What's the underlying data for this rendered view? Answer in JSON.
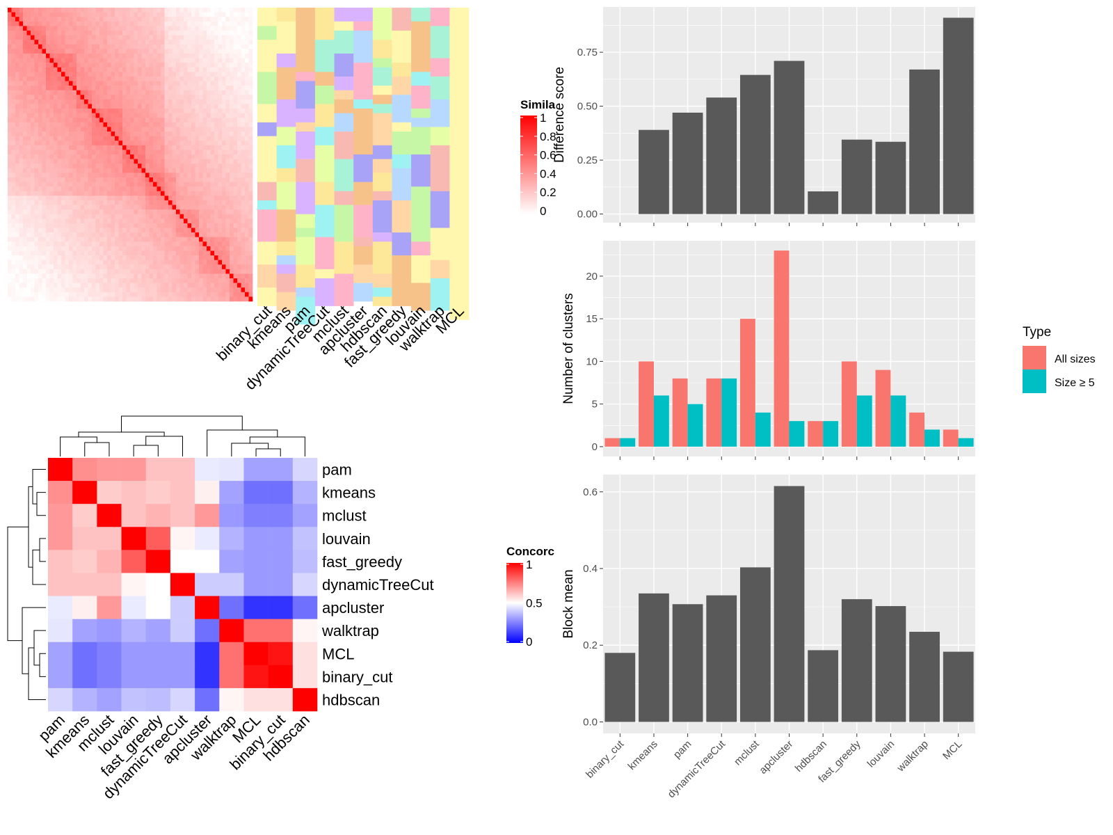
{
  "similarity_legend": {
    "title": "Simila",
    "ticks": [
      "1",
      "0.8",
      "0.6",
      "0.4",
      "0.2",
      "0"
    ],
    "colors": {
      "low": "#ffffff",
      "high": "#ff0000"
    }
  },
  "concordance_legend": {
    "title": "Concorc",
    "ticks": [
      "1",
      "0.5",
      "0"
    ],
    "colors": {
      "low": "#0000ff",
      "mid": "#ffffff",
      "high": "#ff0000"
    }
  },
  "chart_data": [
    {
      "id": "cell_similarity_heatmap",
      "type": "heatmap",
      "description_values": "cell-by-cell similarity matrix with assigned cluster annotations per method",
      "annotation_columns": [
        "binary_cut",
        "kmeans",
        "pam",
        "dynamicTreeCut",
        "mclust",
        "apcluster",
        "hdbscan",
        "fast_greedy",
        "louvain",
        "walktrap",
        "MCL"
      ],
      "n_rows": 64,
      "value_range": [
        0,
        1
      ]
    },
    {
      "id": "method_concordance_heatmap",
      "type": "heatmap",
      "rows": [
        "pam",
        "kmeans",
        "mclust",
        "louvain",
        "fast_greedy",
        "dynamicTreeCut",
        "apcluster",
        "walktrap",
        "MCL",
        "binary_cut",
        "hdbscan"
      ],
      "columns": [
        "pam",
        "kmeans",
        "mclust",
        "louvain",
        "fast_greedy",
        "dynamicTreeCut",
        "apcluster",
        "walktrap",
        "MCL",
        "binary_cut",
        "hdbscan"
      ],
      "values": [
        [
          1.0,
          0.72,
          0.7,
          0.7,
          0.62,
          0.62,
          0.46,
          0.45,
          0.32,
          0.32,
          0.42
        ],
        [
          0.72,
          1.0,
          0.6,
          0.62,
          0.6,
          0.62,
          0.53,
          0.32,
          0.22,
          0.22,
          0.35
        ],
        [
          0.7,
          0.6,
          1.0,
          0.62,
          0.65,
          0.62,
          0.7,
          0.3,
          0.25,
          0.25,
          0.32
        ],
        [
          0.7,
          0.62,
          0.62,
          1.0,
          0.82,
          0.52,
          0.46,
          0.35,
          0.3,
          0.3,
          0.38
        ],
        [
          0.62,
          0.6,
          0.65,
          0.82,
          1.0,
          0.5,
          0.5,
          0.32,
          0.3,
          0.3,
          0.37
        ],
        [
          0.62,
          0.62,
          0.62,
          0.52,
          0.5,
          1.0,
          0.4,
          0.4,
          0.3,
          0.3,
          0.42
        ],
        [
          0.46,
          0.53,
          0.7,
          0.46,
          0.5,
          0.4,
          1.0,
          0.22,
          0.1,
          0.1,
          0.22
        ],
        [
          0.45,
          0.32,
          0.3,
          0.35,
          0.32,
          0.4,
          0.22,
          1.0,
          0.78,
          0.78,
          0.52
        ],
        [
          0.32,
          0.22,
          0.25,
          0.3,
          0.3,
          0.3,
          0.1,
          0.78,
          1.0,
          0.96,
          0.56
        ],
        [
          0.32,
          0.22,
          0.25,
          0.3,
          0.3,
          0.3,
          0.1,
          0.78,
          0.96,
          1.0,
          0.56
        ],
        [
          0.42,
          0.35,
          0.32,
          0.38,
          0.37,
          0.42,
          0.22,
          0.52,
          0.56,
          0.56,
          1.0
        ]
      ],
      "value_range": [
        0,
        1
      ]
    },
    {
      "id": "difference_score",
      "type": "bar",
      "categories": [
        "binary_cut",
        "kmeans",
        "pam",
        "dynamicTreeCut",
        "mclust",
        "apcluster",
        "hdbscan",
        "fast_greedy",
        "louvain",
        "walktrap",
        "MCL"
      ],
      "values": [
        0,
        0.39,
        0.47,
        0.54,
        0.645,
        0.71,
        0.105,
        0.345,
        0.335,
        0.67,
        0.91
      ],
      "ylabel": "Difference score",
      "ylim": [
        -0.04,
        0.96
      ],
      "yticks": [
        "0.00",
        "0.25",
        "0.50",
        "0.75"
      ],
      "bar_color": "#595959"
    },
    {
      "id": "number_of_clusters",
      "type": "bar",
      "categories": [
        "binary_cut",
        "kmeans",
        "pam",
        "dynamicTreeCut",
        "mclust",
        "apcluster",
        "hdbscan",
        "fast_greedy",
        "louvain",
        "walktrap",
        "MCL"
      ],
      "series": [
        {
          "name": "All sizes",
          "color": "#F8766D",
          "values": [
            1,
            10,
            8,
            8,
            15,
            23,
            3,
            10,
            9,
            4,
            2
          ]
        },
        {
          "name": "Size ≥ 5",
          "color": "#00BFC4",
          "values": [
            1,
            6,
            5,
            8,
            4,
            3,
            3,
            6,
            6,
            2,
            1
          ]
        }
      ],
      "ylabel": "Number of clusters",
      "ylim": [
        -1.15,
        24.15
      ],
      "yticks": [
        "0",
        "5",
        "10",
        "15",
        "20"
      ],
      "legend": {
        "title": "Type",
        "placement": "right"
      }
    },
    {
      "id": "block_mean",
      "type": "bar",
      "categories": [
        "binary_cut",
        "kmeans",
        "pam",
        "dynamicTreeCut",
        "mclust",
        "apcluster",
        "hdbscan",
        "fast_greedy",
        "louvain",
        "walktrap",
        "MCL"
      ],
      "values": [
        0.18,
        0.335,
        0.307,
        0.33,
        0.403,
        0.615,
        0.187,
        0.32,
        0.302,
        0.235,
        0.183
      ],
      "ylabel": "Block mean",
      "ylim": [
        -0.03,
        0.645
      ],
      "yticks": [
        "0.0",
        "0.2",
        "0.4",
        "0.6"
      ],
      "bar_color": "#595959"
    }
  ]
}
